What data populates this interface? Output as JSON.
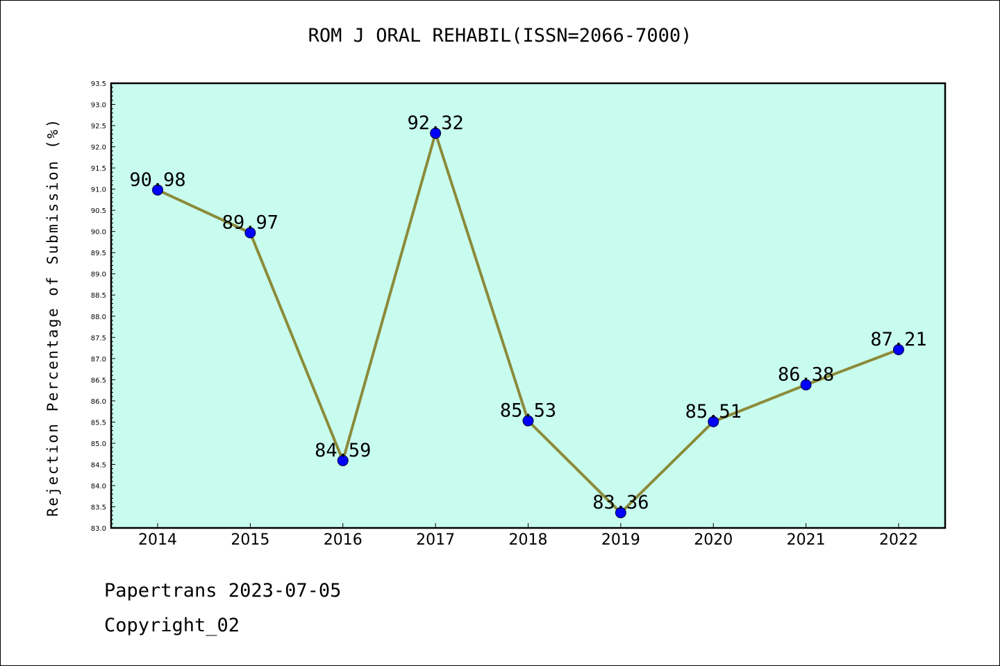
{
  "chart_data": {
    "type": "line",
    "title": "ROM J ORAL REHABIL(ISSN=2066-7000)",
    "ylabel": "Rejection Percentage of Submission (%)",
    "xlabel": "",
    "categories": [
      "2014",
      "2015",
      "2016",
      "2017",
      "2018",
      "2019",
      "2020",
      "2021",
      "2022"
    ],
    "values": [
      90.98,
      89.97,
      84.59,
      92.32,
      85.53,
      83.36,
      85.51,
      86.38,
      87.21
    ],
    "data_labels": [
      "90.98",
      "89.97",
      "84.59",
      "92.32",
      "85.53",
      "83.36",
      "85.51",
      "86.38",
      "87.21"
    ],
    "ylim": [
      83.0,
      93.5
    ],
    "ytick_step": 0.5,
    "grid": false,
    "colors": {
      "plot_background": "#c8fcee",
      "line": "#8b8b3a",
      "marker": "#0000ff"
    }
  },
  "footer": {
    "date_line": "Papertrans 2023-07-05",
    "copyright_line": "Copyright_02"
  }
}
